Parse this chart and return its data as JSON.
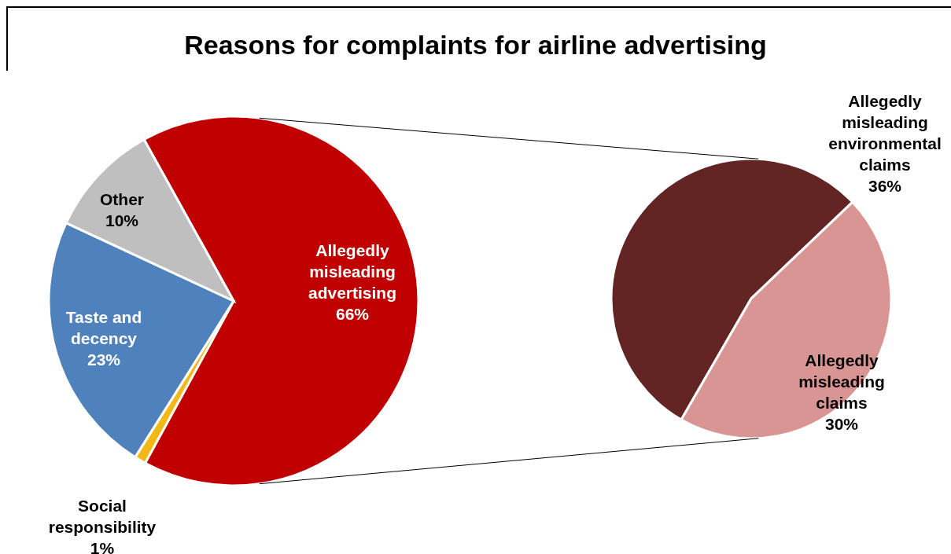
{
  "chart_data": [
    {
      "type": "pie",
      "title": "Reasons for complaints for airline advertising",
      "categories": [
        "Allegedly misleading advertising",
        "Social responsibility",
        "Taste and decency",
        "Other"
      ],
      "values": [
        66,
        1,
        23,
        10
      ],
      "value_labels": [
        "66%",
        "1%",
        "23%",
        "10%"
      ],
      "colors": [
        "#c00000",
        "#f2b817",
        "#4f81bd",
        "#bfbfbf"
      ]
    },
    {
      "type": "pie",
      "categories": [
        "Allegedly misleading environmental claims",
        "Allegedly misleading claims"
      ],
      "values": [
        36,
        30
      ],
      "value_labels": [
        "36%",
        "30%"
      ],
      "colors": [
        "#632523",
        "#d99594"
      ]
    }
  ]
}
